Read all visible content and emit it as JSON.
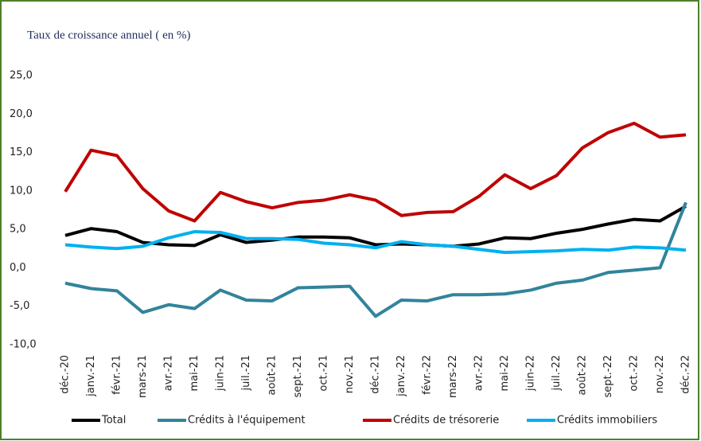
{
  "chart_data": {
    "type": "line",
    "title": "Taux de croissance annuel ( en %)",
    "categories": [
      "déc.-20",
      "janv.-21",
      "févr.-21",
      "mars-21",
      "avr.-21",
      "mai-21",
      "juin-21",
      "juil.-21",
      "août-21",
      "sept.-21",
      "oct.-21",
      "nov.-21",
      "déc.-21",
      "janv.-22",
      "févr.-22",
      "mars-22",
      "avr.-22",
      "mai-22",
      "juin-22",
      "juil.-22",
      "août-22",
      "sept.-22",
      "oct.-22",
      "nov.-22",
      "déc.-22"
    ],
    "series": [
      {
        "name": "Total",
        "color": "#000000",
        "values": [
          4.2,
          5.1,
          4.7,
          3.3,
          3.0,
          2.9,
          4.3,
          3.3,
          3.6,
          4.0,
          4.0,
          3.9,
          3.0,
          3.1,
          3.0,
          2.8,
          3.1,
          3.9,
          3.8,
          4.5,
          5.0,
          5.7,
          6.3,
          6.1,
          8.0
        ]
      },
      {
        "name": "Crédits à l'équipement",
        "color": "#31849b",
        "values": [
          -2.0,
          -2.7,
          -3.0,
          -5.8,
          -4.8,
          -5.3,
          -2.9,
          -4.2,
          -4.3,
          -2.6,
          -2.5,
          -2.4,
          -6.3,
          -4.2,
          -4.3,
          -3.5,
          -3.5,
          -3.4,
          -2.9,
          -2.0,
          -1.6,
          -0.6,
          -0.3,
          0.0,
          8.5
        ]
      },
      {
        "name": "Crédits de trésorerie",
        "color": "#c00000",
        "values": [
          9.9,
          15.3,
          14.6,
          10.3,
          7.4,
          6.1,
          9.8,
          8.6,
          7.8,
          8.5,
          8.8,
          9.5,
          8.8,
          6.8,
          7.2,
          7.3,
          9.3,
          12.1,
          10.3,
          12.0,
          15.6,
          17.6,
          18.8,
          17.0,
          17.3
        ]
      },
      {
        "name": "Crédits immobiliers",
        "color": "#00b0f0",
        "values": [
          3.0,
          2.7,
          2.5,
          2.8,
          3.9,
          4.7,
          4.6,
          3.8,
          3.8,
          3.7,
          3.2,
          3.0,
          2.6,
          3.4,
          3.0,
          2.8,
          2.4,
          2.0,
          2.1,
          2.2,
          2.4,
          2.3,
          2.7,
          2.6,
          2.3
        ]
      }
    ],
    "ylim": [
      -10,
      25
    ],
    "yticks": [
      {
        "value": -10,
        "label": "-10,0"
      },
      {
        "value": -5,
        "label": "-5,0"
      },
      {
        "value": 0,
        "label": "0,0"
      },
      {
        "value": 5,
        "label": "5,0"
      },
      {
        "value": 10,
        "label": "10,0"
      },
      {
        "value": 15,
        "label": "15,0"
      },
      {
        "value": 20,
        "label": "20,0"
      },
      {
        "value": 25,
        "label": "25,0"
      }
    ],
    "grid": false
  }
}
